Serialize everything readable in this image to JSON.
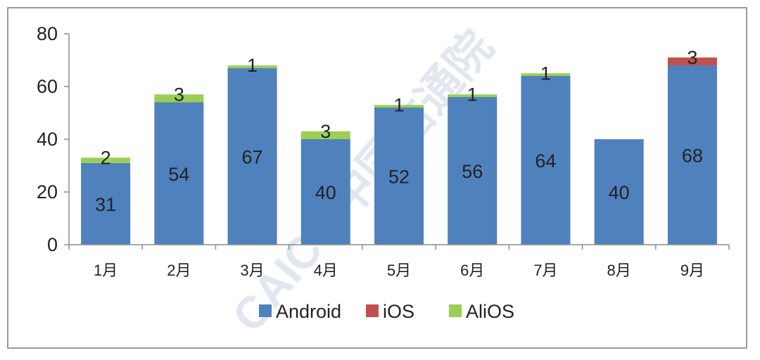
{
  "colors": {
    "android": "#4f81bd",
    "ios": "#c0504d",
    "alios": "#9bcf53",
    "axis": "#8c8c8c",
    "watermark": "#c9d2e3"
  },
  "watermark": "CAICT 中国信通院",
  "chart_data": {
    "type": "bar",
    "stacked": true,
    "categories": [
      "1月",
      "2月",
      "3月",
      "4月",
      "5月",
      "6月",
      "7月",
      "8月",
      "9月"
    ],
    "series": [
      {
        "name": "Android",
        "values": [
          31,
          54,
          67,
          40,
          52,
          56,
          64,
          40,
          68
        ]
      },
      {
        "name": "iOS",
        "values": [
          0,
          0,
          0,
          0,
          0,
          0,
          0,
          0,
          3
        ]
      },
      {
        "name": "AliOS",
        "values": [
          2,
          3,
          1,
          3,
          1,
          1,
          1,
          0,
          0
        ]
      }
    ],
    "ylim": [
      0,
      80
    ],
    "yticks": [
      0,
      20,
      40,
      60,
      80
    ],
    "grid": false,
    "legend_position": "bottom",
    "title": "",
    "xlabel": "",
    "ylabel": ""
  }
}
